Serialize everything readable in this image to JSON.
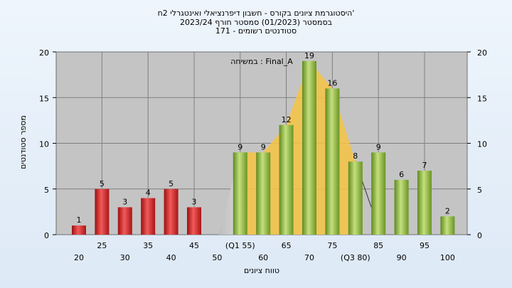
{
  "chart_data": {
    "type": "bar",
    "title_lines": [
      "היסטוגרמת ציונים בקורס - חשבון דיפרנציאלי ואינטגרלי 2ח'",
      "בסמסטר  (01/2023)  סמסטר חורף 2023/24",
      "171 - סטודנטים רשומים"
    ],
    "xlabel": "טווח ציונים",
    "ylabel": "מספר סטודנטים",
    "annotation": "במשיחה : Final_A",
    "ylim": [
      0,
      20
    ],
    "yticks": [
      0,
      5,
      10,
      15,
      20
    ],
    "categories": [
      "20",
      "25",
      "30",
      "35",
      "40",
      "45",
      "50",
      "55",
      "60",
      "65",
      "70",
      "75",
      "80",
      "85",
      "90",
      "95",
      "100"
    ],
    "x_tick_labels": [
      "20",
      "25",
      "30",
      "35",
      "40",
      "45",
      "50",
      "(Q1 55)",
      "60",
      "65",
      "70",
      "75",
      "(Q3 80)",
      "85",
      "90",
      "95",
      "100"
    ],
    "values": [
      1,
      5,
      3,
      4,
      5,
      3,
      0,
      9,
      9,
      12,
      19,
      16,
      8,
      9,
      6,
      7,
      2
    ],
    "value_labels": [
      "1",
      "5",
      "3",
      "4",
      "5",
      "3",
      "",
      "9",
      "9",
      "12",
      "19",
      "16",
      "8",
      "9",
      "6",
      "7",
      "2"
    ],
    "fail_threshold_category": "50",
    "colors": {
      "fail_bar": "#d42a2a",
      "pass_bar": "#8cbd3c",
      "quartile_area": "#f7c443",
      "plot_bg": "#c4c4c4",
      "grid": "#808080"
    },
    "grid": true
  }
}
